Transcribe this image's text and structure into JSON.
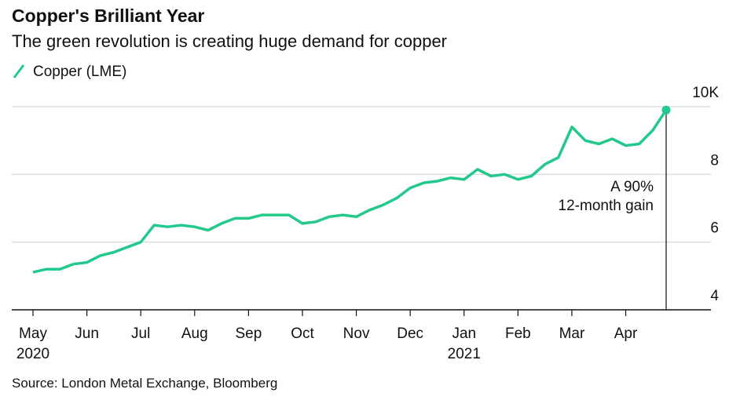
{
  "chart_data": {
    "type": "line",
    "title": "Copper's Brilliant Year",
    "subtitle": "The green revolution is creating huge demand for copper",
    "source": "Source: London Metal Exchange, Bloomberg",
    "annotation": [
      "A 90%",
      "12-month gain"
    ],
    "categories": [
      "May",
      null,
      null,
      null,
      "Jun",
      null,
      null,
      null,
      "Jul",
      null,
      null,
      null,
      "Aug",
      null,
      null,
      null,
      "Sep",
      null,
      null,
      null,
      "Oct",
      null,
      null,
      null,
      "Nov",
      null,
      null,
      null,
      "Dec",
      null,
      null,
      null,
      "Jan",
      null,
      null,
      null,
      "Feb",
      null,
      null,
      null,
      "Mar",
      null,
      null,
      null,
      "Apr",
      null,
      null,
      null
    ],
    "year_labels": [
      {
        "index": 0,
        "label": "2020"
      },
      {
        "index": 32,
        "label": "2021"
      }
    ],
    "series": [
      {
        "name": "Copper (LME)",
        "color": "#22c98b",
        "values": [
          5.11,
          5.2,
          5.2,
          5.35,
          5.4,
          5.6,
          5.7,
          5.85,
          6.0,
          6.5,
          6.45,
          6.5,
          6.45,
          6.35,
          6.55,
          6.7,
          6.7,
          6.8,
          6.8,
          6.8,
          6.55,
          6.6,
          6.75,
          6.8,
          6.75,
          6.95,
          7.1,
          7.3,
          7.6,
          7.75,
          7.8,
          7.9,
          7.85,
          8.15,
          7.95,
          8.0,
          7.85,
          7.95,
          8.3,
          8.5,
          9.4,
          9.0,
          8.9,
          9.05,
          8.85,
          8.9,
          9.3,
          9.9
        ]
      }
    ],
    "ylim": [
      4,
      10
    ],
    "yticks": [
      4,
      6,
      8,
      {
        "value": 10,
        "label": "10K"
      }
    ],
    "grid": true
  }
}
